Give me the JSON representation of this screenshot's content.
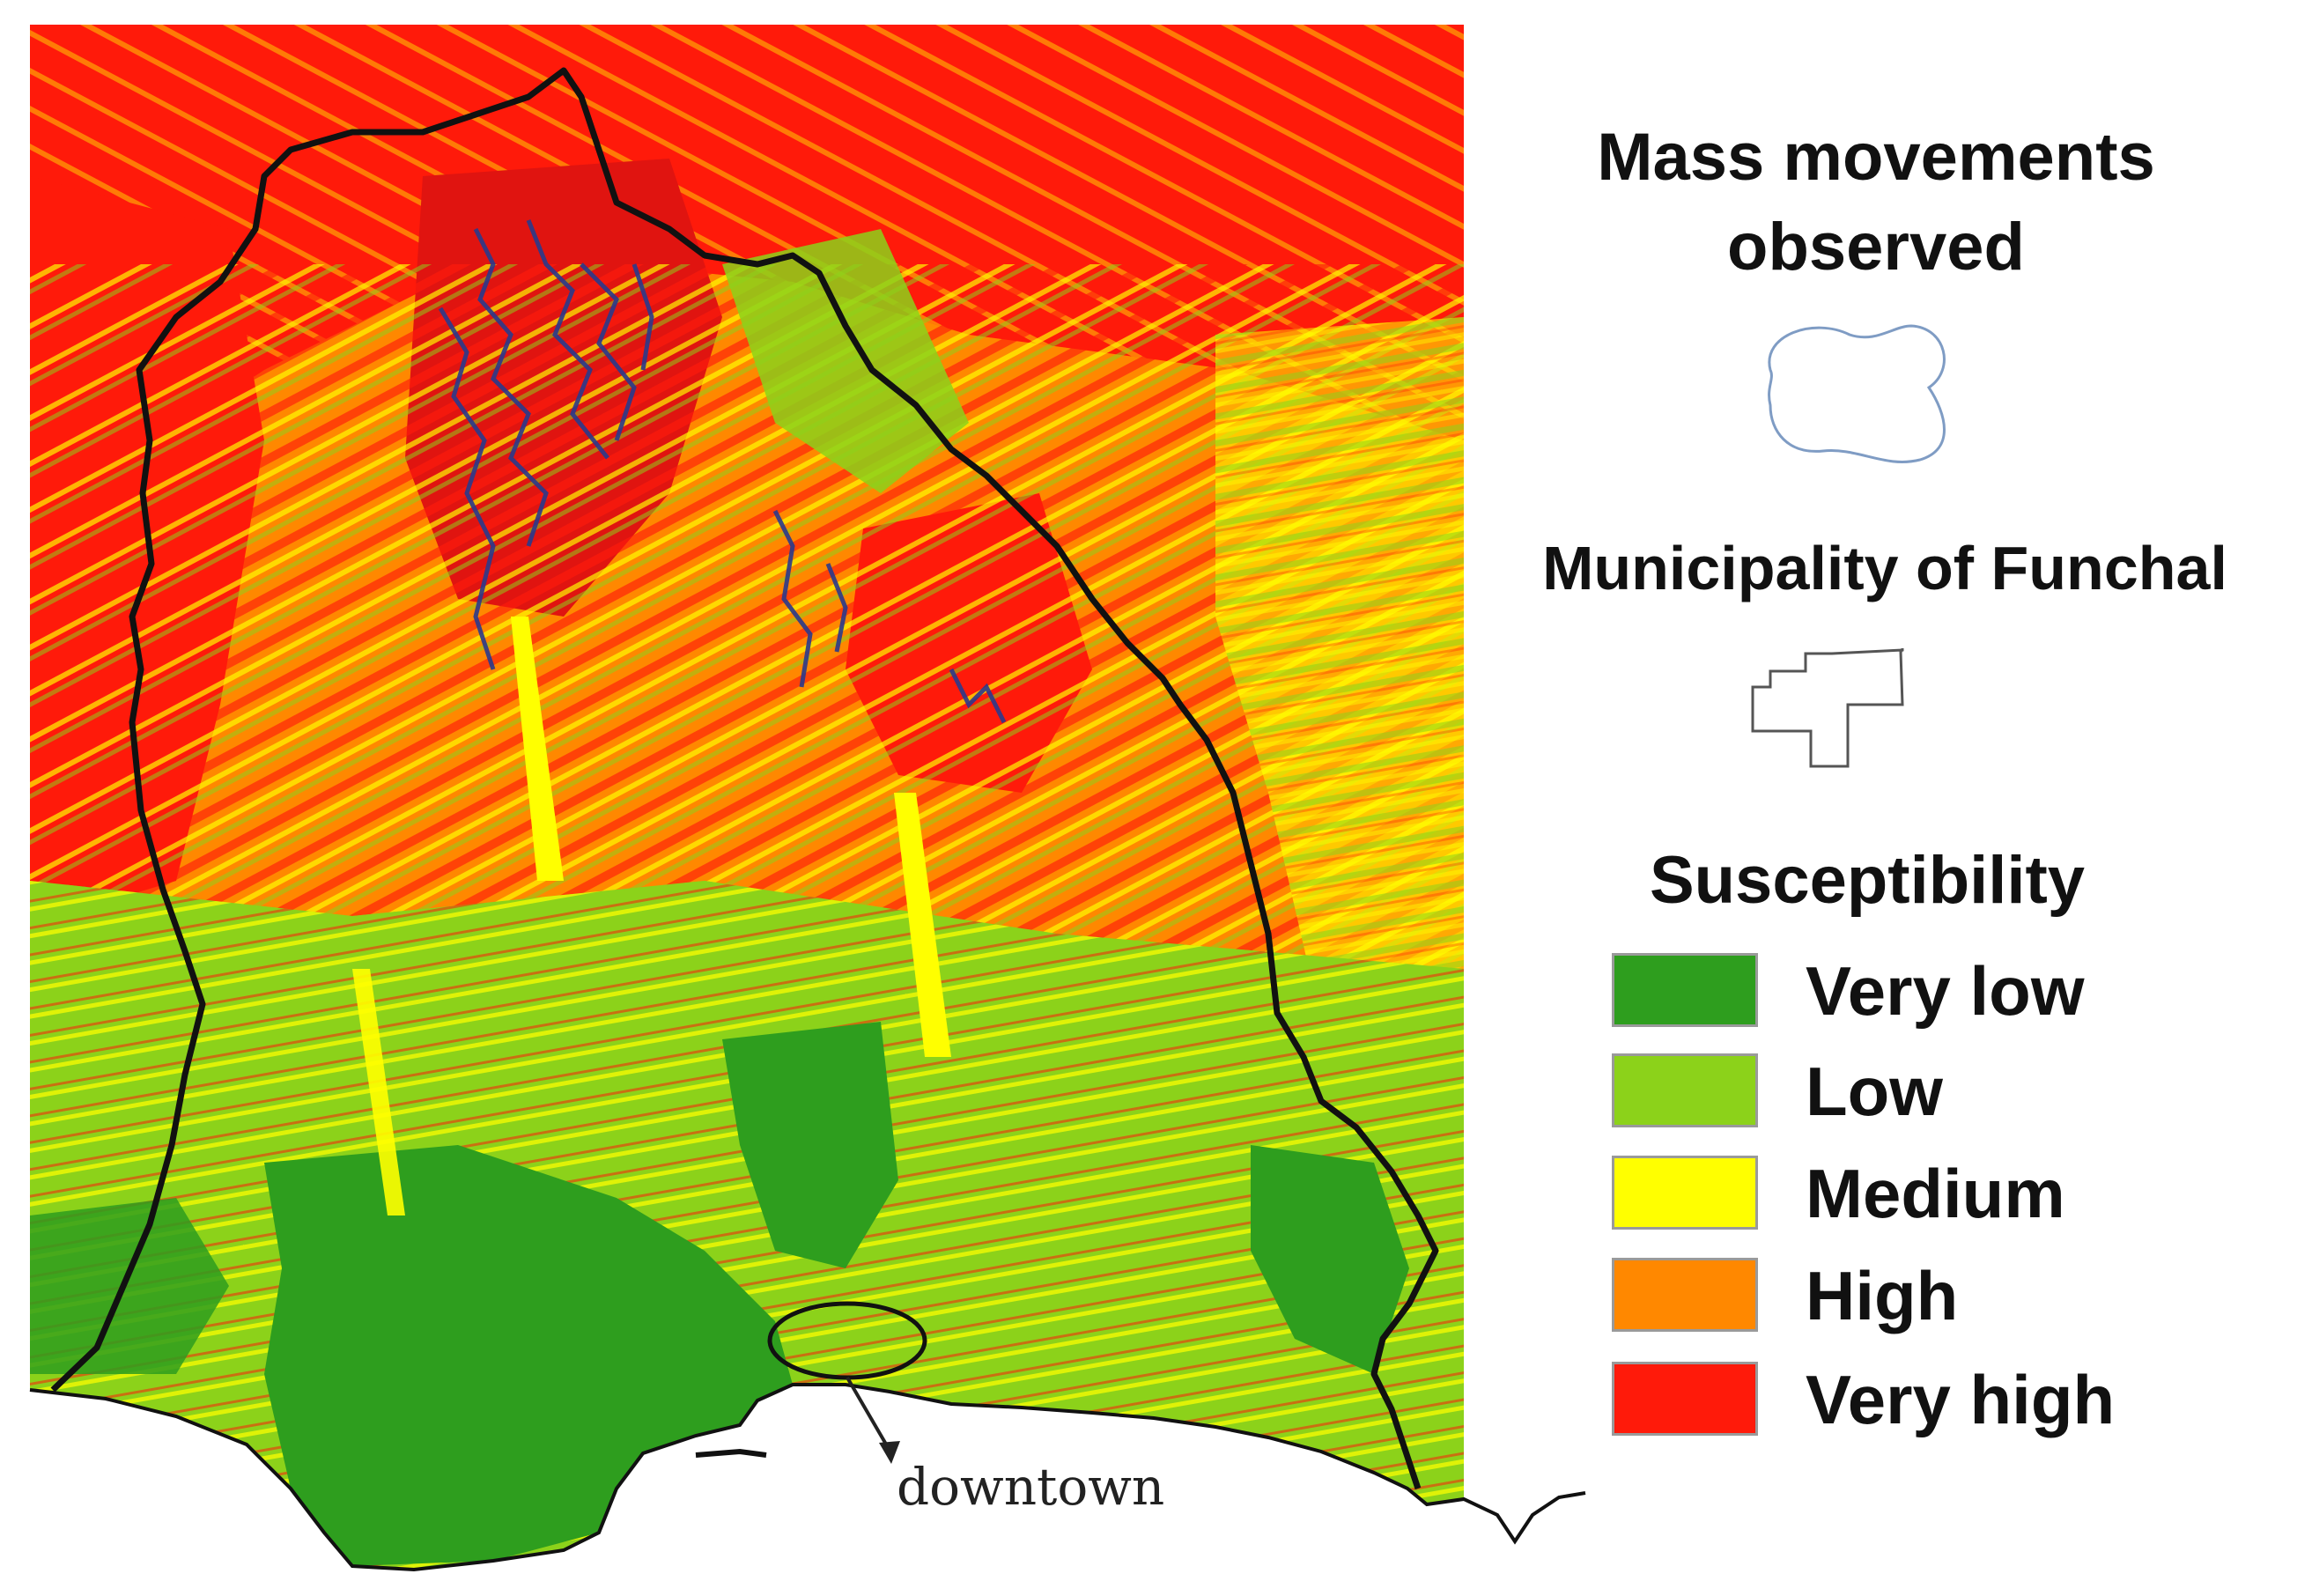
{
  "legend": {
    "mass_movements_title": "Mass movements\nobserved",
    "municipality_title": "Municipality of Funchal",
    "susceptibility_title": "Susceptibility",
    "classes": [
      {
        "label": "Very low",
        "color": "#2e9e1e"
      },
      {
        "label": "Low",
        "color": "#8cd21a"
      },
      {
        "label": "Medium",
        "color": "#ffff00"
      },
      {
        "label": "High",
        "color": "#ff8800"
      },
      {
        "label": "Very high",
        "color": "#ff1a0a"
      }
    ],
    "mass_movement_color": "#2a3a8c",
    "mass_movement_icon": "blob-outline-icon",
    "municipality_icon": "boundary-outline-icon"
  },
  "annotation": {
    "downtown": "downtown"
  }
}
